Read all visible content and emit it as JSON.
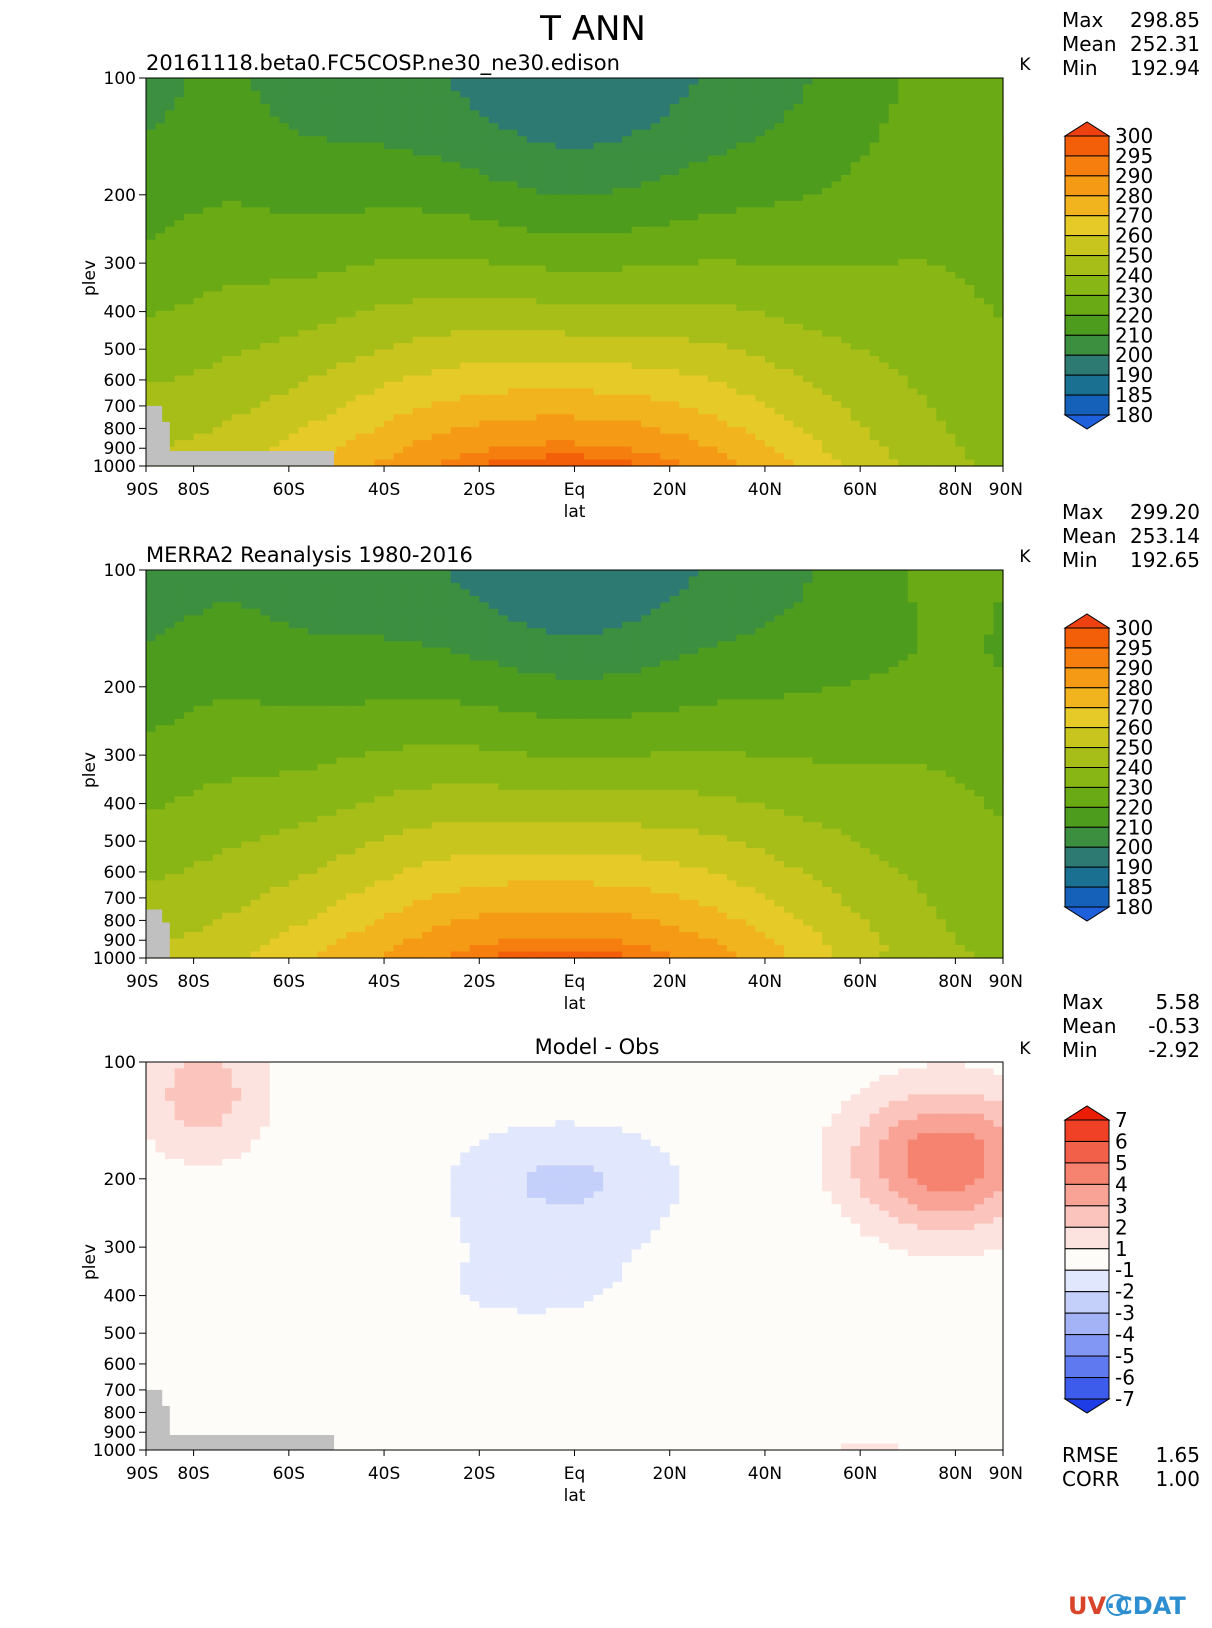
{
  "figure_title": "T ANN",
  "units_label": "K",
  "y_axis_label": "plev",
  "x_axis_label": "lat",
  "x_ticks": [
    {
      "lat": -90,
      "label": "90S"
    },
    {
      "lat": -80,
      "label": "80S"
    },
    {
      "lat": -60,
      "label": "60S"
    },
    {
      "lat": -40,
      "label": "40S"
    },
    {
      "lat": -20,
      "label": "20S"
    },
    {
      "lat": 0,
      "label": "Eq"
    },
    {
      "lat": 20,
      "label": "20N"
    },
    {
      "lat": 40,
      "label": "40N"
    },
    {
      "lat": 60,
      "label": "60N"
    },
    {
      "lat": 80,
      "label": "80N"
    },
    {
      "lat": 90,
      "label": "90N"
    }
  ],
  "y_ticks": [
    {
      "p": 100,
      "label": "100"
    },
    {
      "p": 200,
      "label": "200"
    },
    {
      "p": 300,
      "label": "300"
    },
    {
      "p": 400,
      "label": "400"
    },
    {
      "p": 500,
      "label": "500"
    },
    {
      "p": 600,
      "label": "600"
    },
    {
      "p": 700,
      "label": "700"
    },
    {
      "p": 800,
      "label": "800"
    },
    {
      "p": 900,
      "label": "900"
    },
    {
      "p": 1000,
      "label": "1000"
    }
  ],
  "stat_labels": {
    "max": "Max",
    "mean": "Mean",
    "min": "Min",
    "rmse": "RMSE",
    "corr": "CORR"
  },
  "logo_text": "UV-CDAT",
  "chart_data": [
    {
      "type": "heatmap",
      "title": "20161118.beta0.FC5COSP.ne30_ne30.edison",
      "stats": {
        "max": "298.85",
        "mean": "252.31",
        "min": "192.94"
      },
      "colorbar": {
        "levels": [
          "180",
          "185",
          "190",
          "200",
          "210",
          "220",
          "230",
          "240",
          "250",
          "260",
          "270",
          "280",
          "290",
          "295",
          "300"
        ],
        "colors": [
          "#1e5fdc",
          "#1560b8",
          "#1a7090",
          "#2d7a72",
          "#3d8f40",
          "#4e9c1e",
          "#6aaa14",
          "#88b614",
          "#a8be18",
          "#c8c61e",
          "#e6ca28",
          "#f2b41e",
          "#f49a14",
          "#f57e0e",
          "#f35e08",
          "#ee4010"
        ]
      },
      "xlabel": "lat",
      "ylabel": "plev",
      "xlim": [
        -90,
        90
      ],
      "ylim": [
        1000,
        100
      ],
      "field": "model_t"
    },
    {
      "type": "heatmap",
      "title": "MERRA2 Reanalysis 1980-2016",
      "stats": {
        "max": "299.20",
        "mean": "253.14",
        "min": "192.65"
      },
      "colorbar": {
        "levels": [
          "180",
          "185",
          "190",
          "200",
          "210",
          "220",
          "230",
          "240",
          "250",
          "260",
          "270",
          "280",
          "290",
          "295",
          "300"
        ],
        "colors": [
          "#1e5fdc",
          "#1560b8",
          "#1a7090",
          "#2d7a72",
          "#3d8f40",
          "#4e9c1e",
          "#6aaa14",
          "#88b614",
          "#a8be18",
          "#c8c61e",
          "#e6ca28",
          "#f2b41e",
          "#f49a14",
          "#f57e0e",
          "#f35e08",
          "#ee4010"
        ]
      },
      "xlabel": "lat",
      "ylabel": "plev",
      "xlim": [
        -90,
        90
      ],
      "ylim": [
        1000,
        100
      ],
      "field": "obs_t"
    },
    {
      "type": "heatmap",
      "title": "Model - Obs",
      "stats": {
        "max": "5.58",
        "mean": "-0.53",
        "min": "-2.92"
      },
      "rmse": "1.65",
      "corr": "1.00",
      "colorbar": {
        "levels": [
          "-7",
          "-6",
          "-5",
          "-4",
          "-3",
          "-2",
          "-1",
          "1",
          "2",
          "3",
          "4",
          "5",
          "6",
          "7"
        ],
        "colors": [
          "#1e3de6",
          "#3e5ceb",
          "#5f7af0",
          "#8197f3",
          "#a3b3f6",
          "#c4cffa",
          "#e1e7fc",
          "#fdfcf8",
          "#fde3df",
          "#fbc4bc",
          "#f8a396",
          "#f68270",
          "#f3604a",
          "#f04026",
          "#ec1d05"
        ]
      },
      "xlabel": "lat",
      "ylabel": "plev",
      "xlim": [
        -90,
        90
      ],
      "ylim": [
        1000,
        100
      ],
      "field": "diff_t"
    }
  ]
}
